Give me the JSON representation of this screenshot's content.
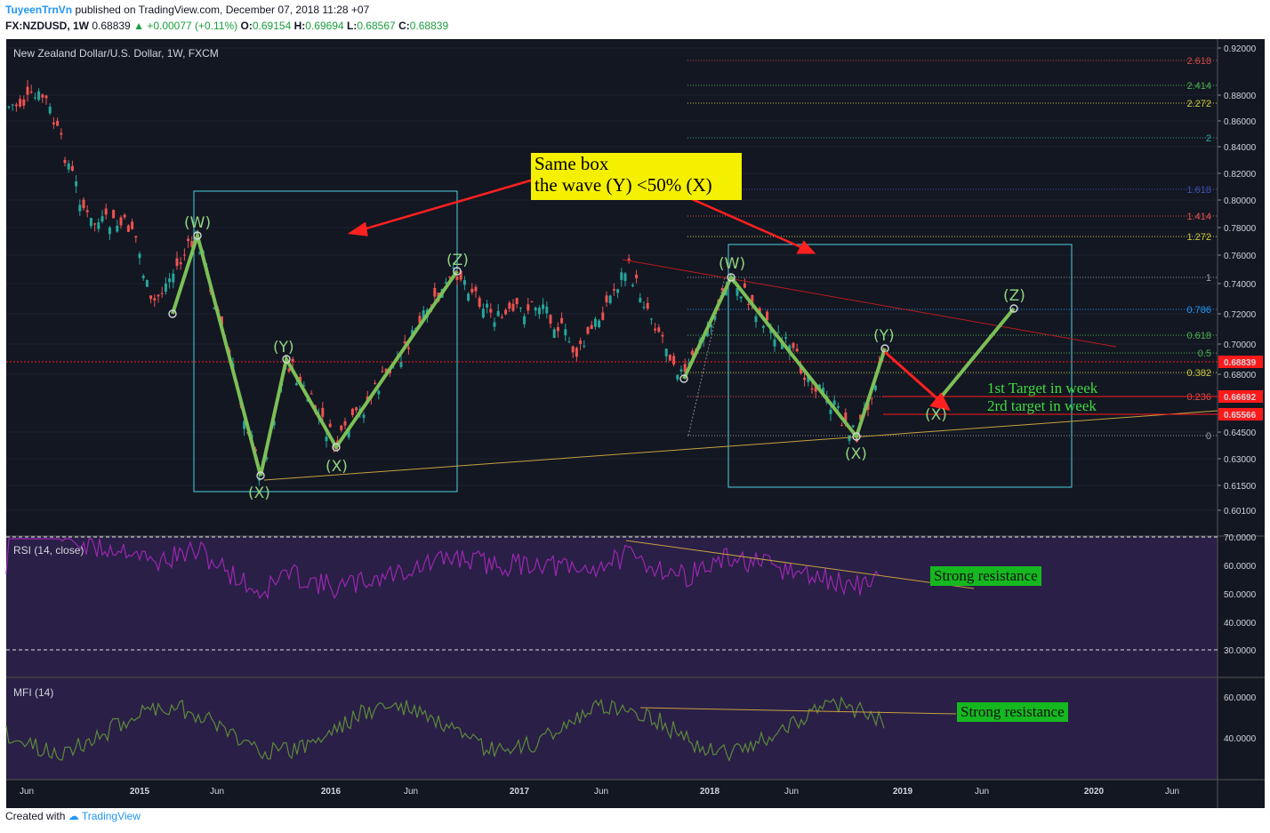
{
  "header": {
    "author": "TuyeenTrnVn",
    "published": "published on TradingView.com, December 07, 2018 11:28 +07",
    "symbol": "FX:NZDUSD, 1W",
    "last": "0.68839",
    "change": "+0.00077 (+0.11%)",
    "open_label": "O:",
    "open": "0.69154",
    "high_label": "H:",
    "high": "0.69694",
    "low_label": "L:",
    "low": "0.68567",
    "close_label": "C:",
    "close": "0.68839"
  },
  "panes": {
    "main_title": "New Zealand Dollar/U.S. Dollar, 1W, FXCM",
    "rsi_title": "RSI (14, close)",
    "mfi_title": "MFI (14)"
  },
  "annotations": {
    "note_line1": "Same box",
    "note_line2": "the wave (Y) <50% (X)",
    "target1": "1st Target in week",
    "target2": "2rd target in week",
    "rsi_resistance": "Strong resistance",
    "mfi_resistance": "Strong resistance",
    "wave_left": [
      "(W)",
      "(X)",
      "(Y)",
      "(X)",
      "(Z)"
    ],
    "wave_right": [
      "(W)",
      "(X)",
      "(Y)",
      "(X)",
      "(Z)"
    ]
  },
  "price_axis": [
    "0.92000",
    "0.88000",
    "0.86000",
    "0.84000",
    "0.82000",
    "0.80000",
    "0.78000",
    "0.76000",
    "0.74000",
    "0.72000",
    "0.70000",
    "0.68000",
    "0.64500",
    "0.63000",
    "0.61500",
    "0.60100"
  ],
  "price_badges": [
    {
      "value": "0.68839",
      "color": "#ff1a1a"
    },
    {
      "value": "0.66692",
      "color": "#ff1a1a"
    },
    {
      "value": "0.65566",
      "color": "#ff1a1a"
    }
  ],
  "fib_levels": [
    {
      "label": "2.618",
      "color": "#d04848"
    },
    {
      "label": "2.414",
      "color": "#4caf50"
    },
    {
      "label": "2.272",
      "color": "#c8c83c"
    },
    {
      "label": "2",
      "color": "#26a69a"
    },
    {
      "label": "1.618",
      "color": "#3f51b5"
    },
    {
      "label": "1.414",
      "color": "#e05050"
    },
    {
      "label": "1.272",
      "color": "#c8c83c"
    },
    {
      "label": "1",
      "color": "#9e9e9e"
    },
    {
      "label": "0.786",
      "color": "#2196f3"
    },
    {
      "label": "0.618",
      "color": "#4caf50"
    },
    {
      "label": "0.5",
      "color": "#4caf50"
    },
    {
      "label": "0.382",
      "color": "#c8c83c"
    },
    {
      "label": "0.236",
      "color": "#e05050"
    },
    {
      "label": "0",
      "color": "#9e9e9e"
    }
  ],
  "rsi_axis": [
    "70.0000",
    "60.0000",
    "50.0000",
    "40.0000",
    "30.0000"
  ],
  "mfi_axis": [
    "60.0000",
    "40.0000"
  ],
  "time_axis": [
    "Jun",
    "2015",
    "Jun",
    "2016",
    "Jun",
    "2017",
    "Jun",
    "2018",
    "Jun",
    "2019",
    "Jun",
    "2020",
    "Jun"
  ],
  "footer": {
    "created": "Created with",
    "brand": "TradingView"
  },
  "colors": {
    "background": "#131722",
    "indicator_bg": "#2a1f47",
    "wave": "#7cbf56",
    "up": "#26a69a",
    "down": "#ef5350",
    "rsi": "#9c27b0",
    "mfi": "#5d8a3a"
  }
}
